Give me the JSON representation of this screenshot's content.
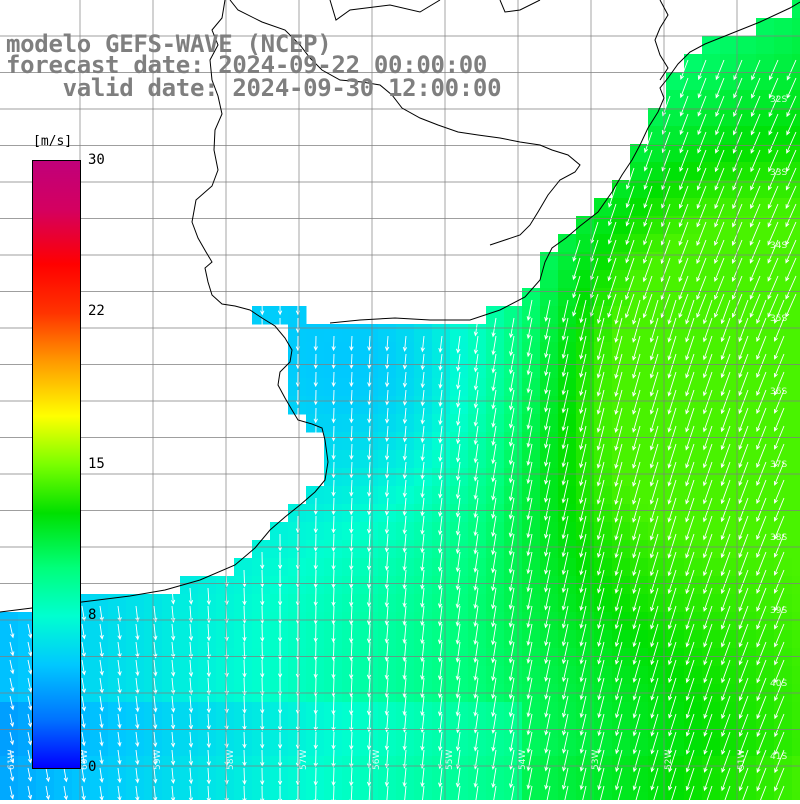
{
  "header": {
    "title_line1": "modelo GEFS-WAVE (NCEP)",
    "title_line2": "forecast date: 2024-09-22 00:00:00",
    "title_line3": "    valid date: 2024-09-30 12:00:00"
  },
  "colorbar": {
    "unit": "[m/s]",
    "ticks": [
      "30",
      "22",
      "15",
      "8",
      "0"
    ],
    "tick_values": [
      30,
      22,
      15,
      8,
      0
    ],
    "range": [
      0,
      30
    ],
    "colors": [
      "#0000ff",
      "#0073ff",
      "#00c8ff",
      "#00ffd0",
      "#00ff7a",
      "#00e000",
      "#7aff00",
      "#ffff00",
      "#ff9900",
      "#ff3300",
      "#ff0000",
      "#d40060",
      "#c0007a"
    ]
  },
  "map": {
    "variable": "wind speed and direction",
    "land_color": "#ffffff",
    "coastline_color": "#000000",
    "grid_color": "#7f7f7f",
    "arrow_color": "#ffffff",
    "lat_labels": [
      "32S",
      "33S",
      "34S",
      "35S",
      "36S",
      "37S",
      "38S",
      "39S",
      "40S",
      "41S"
    ],
    "lon_labels": [
      "61W",
      "60W",
      "59W",
      "58W",
      "57W",
      "56W",
      "55W",
      "54W",
      "53W",
      "52W",
      "51W"
    ],
    "prevailing_direction": "southward"
  }
}
